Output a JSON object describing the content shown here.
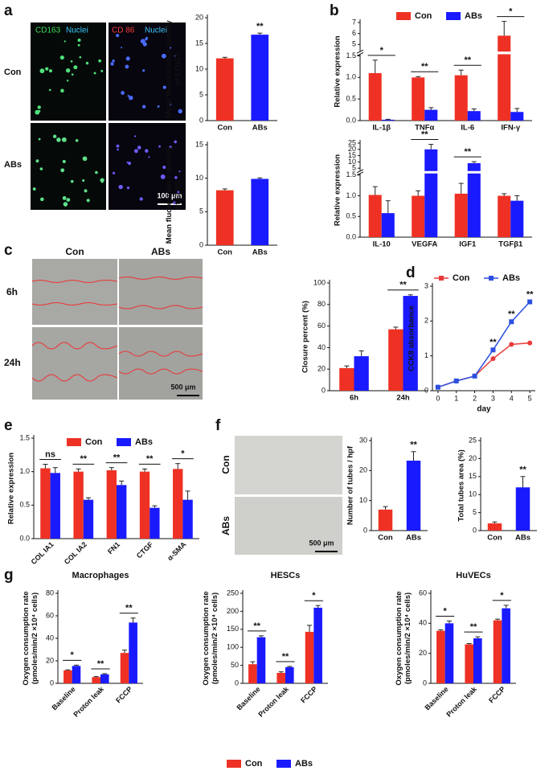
{
  "panel_labels": [
    "a",
    "b",
    "c",
    "d",
    "e",
    "f",
    "g"
  ],
  "images_a": {
    "stain1": "CD163",
    "stain2": "CD 86",
    "nuclei": "Nuclei",
    "rows": [
      "Con",
      "ABs"
    ],
    "scale": "100 μm"
  },
  "images_c": {
    "cols": [
      "Con",
      "ABs"
    ],
    "rows": [
      "6h",
      "24h"
    ],
    "scale": "500 μm"
  },
  "images_f": {
    "rows": [
      "Con",
      "ABs"
    ],
    "scale": "500 μm"
  },
  "chart_data": [
    {
      "type": "bar",
      "ylabel": [
        "Mean fluorescence density",
        "of CD163"
      ],
      "categories": [
        "Con",
        "ABs"
      ],
      "values": [
        12.1,
        16.7
      ],
      "errors": [
        0.2,
        0.3
      ],
      "colors": [
        "#ee3124",
        "#1a1aff"
      ],
      "significance": [
        null,
        "**"
      ],
      "ylim": [
        0,
        20
      ],
      "yticks": [
        0,
        5,
        10,
        15,
        20
      ]
    },
    {
      "type": "bar",
      "ylabel": [
        "Mean fluorescence density",
        "of CD86"
      ],
      "categories": [
        "Con",
        "ABs"
      ],
      "values": [
        8.2,
        9.9
      ],
      "errors": [
        0.2,
        0.15
      ],
      "colors": [
        "#ee3124",
        "#1a1aff"
      ],
      "ylim": [
        0,
        15
      ],
      "yticks": [
        0,
        5,
        10,
        15
      ]
    },
    {
      "type": "bar",
      "ylabel": [
        "Relative expression"
      ],
      "categories": [
        "IL-1β",
        "TNFα",
        "IL-6",
        "IFN-γ"
      ],
      "legend": "top",
      "series": [
        {
          "name": "Con",
          "color": "#ee3124",
          "values": [
            1.1,
            1.0,
            1.05,
            5.8
          ],
          "errors": [
            0.3,
            0.02,
            0.12,
            1.3
          ]
        },
        {
          "name": "ABs",
          "color": "#1a1aff",
          "values": [
            0.02,
            0.25,
            0.22,
            0.2
          ],
          "errors": [
            0.01,
            0.05,
            0.05,
            0.08
          ]
        }
      ],
      "significance": [
        "*",
        "**",
        "**",
        "*"
      ],
      "ylim": [
        0,
        7
      ],
      "ybreak": [
        1.5,
        4.5
      ],
      "yticks": [
        {
          "value": 0,
          "label": "0.0"
        },
        {
          "value": 0.5,
          "label": "0.5"
        },
        {
          "value": 1,
          "label": "1.0"
        },
        {
          "value": 1.5,
          "label": "1.5"
        },
        5,
        6,
        7
      ]
    },
    {
      "type": "bar",
      "ylabel": [
        "Relative expression"
      ],
      "categories": [
        "IL-10",
        "VEGFA",
        "IGF1",
        "TGFβ1"
      ],
      "series": [
        {
          "name": "Con",
          "color": "#ee3124",
          "values": [
            1.02,
            1.0,
            1.05,
            1.0
          ],
          "errors": [
            0.2,
            0.12,
            0.25,
            0.05
          ]
        },
        {
          "name": "ABs",
          "color": "#1a1aff",
          "values": [
            0.58,
            20,
            9,
            0.88
          ],
          "errors": [
            0.3,
            4,
            1.2,
            0.12
          ]
        }
      ],
      "significance": [
        null,
        "**",
        "**",
        null
      ],
      "ylim": [
        0,
        25
      ],
      "ybreak": [
        1.5,
        4
      ],
      "yticks": [
        {
          "value": 0,
          "label": "0.0"
        },
        {
          "value": 0.5,
          "label": "0.5"
        },
        {
          "value": 1,
          "label": "1.0"
        },
        {
          "value": 1.5,
          "label": "1.5"
        },
        5,
        10,
        15,
        20,
        25
      ]
    },
    {
      "type": "bar",
      "ylabel": [
        "Closure percent (%)"
      ],
      "categories": [
        "6h",
        "24h"
      ],
      "series": [
        {
          "name": "Con",
          "color": "#ee3124",
          "values": [
            21,
            57
          ],
          "errors": [
            2,
            2
          ]
        },
        {
          "name": "ABs",
          "color": "#1a1aff",
          "values": [
            32,
            88
          ],
          "errors": [
            5,
            1
          ]
        }
      ],
      "significance": [
        null,
        "**"
      ],
      "ylim": [
        0,
        100
      ],
      "yticks": [
        0,
        20,
        40,
        60,
        80,
        100
      ]
    },
    {
      "type": "line",
      "ylabel": [
        "CCK8 absorbance"
      ],
      "xlabel": "day",
      "legend": "top",
      "x": [
        0,
        1,
        2,
        3,
        4,
        5
      ],
      "series": [
        {
          "name": "Con",
          "color": "#e83a3a",
          "marker": "circle",
          "values": [
            0.1,
            0.28,
            0.42,
            0.92,
            1.33,
            1.37
          ]
        },
        {
          "name": "ABs",
          "color": "#2b4fe0",
          "marker": "square",
          "values": [
            0.1,
            0.28,
            0.42,
            1.17,
            1.98,
            2.55
          ]
        }
      ],
      "significance": [
        null,
        null,
        null,
        "**",
        "**",
        "**"
      ],
      "xlim": [
        -0.3,
        5.3
      ],
      "xticks": [
        0,
        1,
        2,
        3,
        4,
        5
      ],
      "ylim": [
        0,
        3
      ],
      "yticks": [
        0,
        1,
        2,
        3
      ]
    },
    {
      "type": "bar",
      "ylabel": [
        "Relative expression"
      ],
      "categories": [
        "COL IA1",
        "COL IA2",
        "FN1",
        "CTGF",
        "α-SMA"
      ],
      "legend": "top",
      "series": [
        {
          "name": "Con",
          "color": "#ee3124",
          "values": [
            1.05,
            1.0,
            1.02,
            1.0,
            1.04
          ],
          "errors": [
            0.06,
            0.04,
            0.04,
            0.04,
            0.08
          ]
        },
        {
          "name": "ABs",
          "color": "#1a1aff",
          "values": [
            0.98,
            0.58,
            0.8,
            0.46,
            0.58
          ],
          "errors": [
            0.08,
            0.03,
            0.06,
            0.03,
            0.13
          ]
        }
      ],
      "significance": [
        "ns",
        "**",
        "**",
        "**",
        "*"
      ],
      "ylim": [
        0,
        1.5
      ],
      "yticks": [
        {
          "value": 0,
          "label": "0.0"
        },
        {
          "value": 0.5,
          "label": "0.5"
        },
        {
          "value": 1,
          "label": "1.0"
        },
        {
          "value": 1.5,
          "label": "1.5"
        }
      ]
    },
    {
      "type": "bar",
      "ylabel": [
        "Number of tubes / hpf"
      ],
      "categories": [
        "Con",
        "ABs"
      ],
      "values": [
        7,
        23.3
      ],
      "errors": [
        1,
        3
      ],
      "colors": [
        "#ee3124",
        "#1a1aff"
      ],
      "significance": [
        null,
        "**"
      ],
      "ylim": [
        0,
        30
      ],
      "yticks": [
        0,
        10,
        20,
        30
      ]
    },
    {
      "type": "bar",
      "ylabel": [
        "Total tubes area (%)"
      ],
      "categories": [
        "Con",
        "ABs"
      ],
      "values": [
        2,
        12
      ],
      "errors": [
        0.4,
        3
      ],
      "colors": [
        "#ee3124",
        "#1a1aff"
      ],
      "significance": [
        null,
        "**"
      ],
      "ylim": [
        0,
        25
      ],
      "yticks": [
        0,
        5,
        10,
        15,
        20,
        25
      ]
    },
    {
      "type": "bar",
      "title": "Macrophages",
      "ylabel": [
        "Oxygen consumption rate",
        "(pmoles/min/2 ×10⁴ cells)"
      ],
      "categories": [
        "Baseline",
        "Proton leak",
        "FCCP"
      ],
      "series": [
        {
          "name": "Con",
          "color": "#ee3124",
          "values": [
            11.5,
            5.5,
            27
          ],
          "errors": [
            0.5,
            0.5,
            2.5
          ]
        },
        {
          "name": "ABs",
          "color": "#1a1aff",
          "values": [
            15.5,
            8,
            54
          ],
          "errors": [
            0.7,
            0.6,
            4
          ]
        }
      ],
      "significance": [
        "*",
        "**",
        "**"
      ],
      "ylim": [
        0,
        80
      ],
      "yticks": [
        0,
        20,
        40,
        60,
        80
      ]
    },
    {
      "type": "bar",
      "title": "HESCs",
      "ylabel": [
        "Oxygen consumption rate",
        "(pmoles/min/2 ×10⁴ cells)"
      ],
      "categories": [
        "Baseline",
        "Proton leak",
        "FCCP"
      ],
      "series": [
        {
          "name": "Con",
          "color": "#ee3124",
          "values": [
            53,
            29,
            143
          ],
          "errors": [
            7,
            3,
            18
          ]
        },
        {
          "name": "ABs",
          "color": "#1a1aff",
          "values": [
            128,
            45,
            210
          ],
          "errors": [
            4,
            2,
            6
          ]
        }
      ],
      "significance": [
        "**",
        "**",
        "*"
      ],
      "ylim": [
        0,
        250
      ],
      "yticks": [
        0,
        50,
        100,
        150,
        200,
        250
      ]
    },
    {
      "type": "bar",
      "title": "HuVECs",
      "ylabel": [
        "Oxygen consumption rate",
        "(pmoles/min/2 ×10⁴ cells)"
      ],
      "categories": [
        "Baseline",
        "Proton leak",
        "FCCP"
      ],
      "legend": "bottom",
      "series": [
        {
          "name": "Con",
          "color": "#ee3124",
          "values": [
            35,
            26,
            42
          ],
          "errors": [
            0.6,
            0.5,
            0.8
          ]
        },
        {
          "name": "ABs",
          "color": "#1a1aff",
          "values": [
            40,
            30,
            50
          ],
          "errors": [
            1.5,
            1,
            2
          ]
        }
      ],
      "significance": [
        "*",
        "**",
        "*"
      ],
      "ylim": [
        0,
        60
      ],
      "yticks": [
        0,
        20,
        40,
        60
      ]
    }
  ]
}
